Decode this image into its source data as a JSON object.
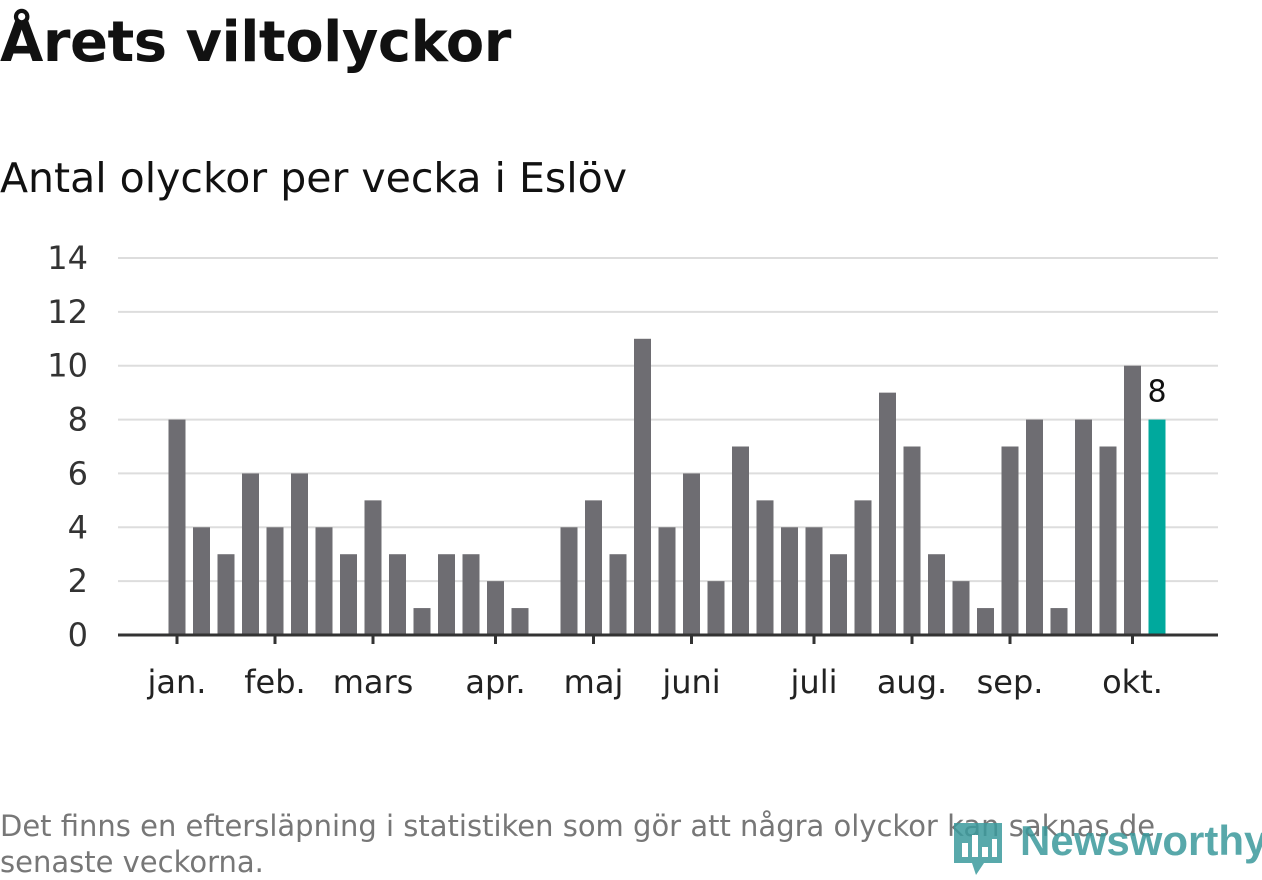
{
  "title": "Årets viltolyckor",
  "subtitle": "Antal olyckor per vecka i Eslöv",
  "note": "Det finns en eftersläpning i statistiken som gör att några olyckor kan saknas de senaste veckorna.",
  "logo_text": "Newsworthy",
  "colors": {
    "bar": "#6e6d72",
    "highlight": "#00a99d",
    "grid": "#dddddd",
    "axis": "#333333",
    "logo": "#3b9a9c"
  },
  "chart_data": {
    "type": "bar",
    "title": "Antal olyckor per vecka i Eslöv",
    "xlabel": "",
    "ylabel": "",
    "ylim": [
      0,
      14
    ],
    "yticks": [
      0,
      2,
      4,
      6,
      8,
      10,
      12,
      14
    ],
    "values": [
      8,
      4,
      3,
      6,
      4,
      6,
      4,
      3,
      5,
      3,
      1,
      3,
      3,
      2,
      1,
      0,
      4,
      5,
      3,
      11,
      4,
      6,
      2,
      7,
      5,
      4,
      4,
      3,
      5,
      9,
      7,
      3,
      2,
      1,
      7,
      8,
      1,
      8,
      7,
      10,
      8
    ],
    "highlight_index": 40,
    "highlight_label": "8",
    "months": [
      {
        "label": "jan.",
        "week_index": 0
      },
      {
        "label": "feb.",
        "week_index": 4
      },
      {
        "label": "mars",
        "week_index": 8
      },
      {
        "label": "apr.",
        "week_index": 13
      },
      {
        "label": "maj",
        "week_index": 17
      },
      {
        "label": "juni",
        "week_index": 21
      },
      {
        "label": "juli",
        "week_index": 26
      },
      {
        "label": "aug.",
        "week_index": 30
      },
      {
        "label": "sep.",
        "week_index": 34
      },
      {
        "label": "okt.",
        "week_index": 39
      }
    ]
  }
}
